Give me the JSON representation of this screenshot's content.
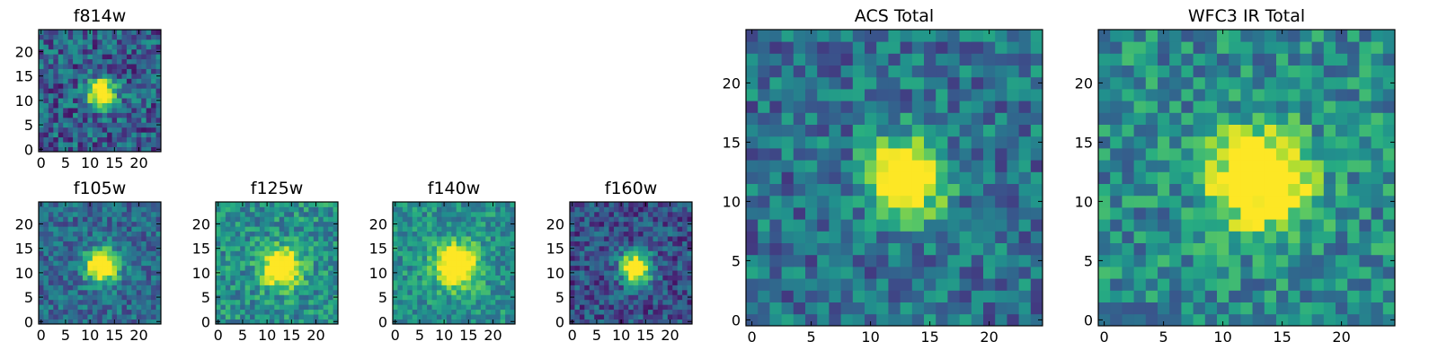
{
  "chart_data": {
    "type": "heatmap",
    "panels": [
      {
        "id": "f814w",
        "title": "f814w",
        "size": 25,
        "seed": 11,
        "peak": [
          12.5,
          11.5
        ],
        "sigma": 2.0,
        "amp": 1.0,
        "noise": 0.25,
        "base": 0.3,
        "x_ticks": [
          0,
          5,
          10,
          15,
          20
        ],
        "y_ticks": [
          0,
          5,
          10,
          15,
          20
        ],
        "x_tick_labels": [
          "0",
          "5",
          "10",
          "15",
          "20"
        ],
        "y_tick_labels": [
          "0",
          "5",
          "10",
          "15",
          "20"
        ]
      },
      {
        "id": "f105w",
        "title": "f105w",
        "size": 25,
        "seed": 23,
        "peak": [
          12.5,
          11.5
        ],
        "sigma": 2.3,
        "amp": 1.0,
        "noise": 0.18,
        "base": 0.35,
        "x_ticks": [
          0,
          5,
          10,
          15,
          20
        ],
        "y_ticks": [
          0,
          5,
          10,
          15,
          20
        ],
        "x_tick_labels": [
          "0",
          "5",
          "10",
          "15",
          "20"
        ],
        "y_tick_labels": [
          "0",
          "5",
          "10",
          "15",
          "20"
        ]
      },
      {
        "id": "f125w",
        "title": "f125w",
        "size": 25,
        "seed": 37,
        "peak": [
          13.0,
          11.0
        ],
        "sigma": 2.6,
        "amp": 0.9,
        "noise": 0.2,
        "base": 0.5,
        "x_ticks": [
          0,
          5,
          10,
          15,
          20
        ],
        "y_ticks": [
          0,
          5,
          10,
          15,
          20
        ],
        "x_tick_labels": [
          "0",
          "5",
          "10",
          "15",
          "20"
        ],
        "y_tick_labels": [
          "0",
          "5",
          "10",
          "15",
          "20"
        ]
      },
      {
        "id": "f140w",
        "title": "f140w",
        "size": 25,
        "seed": 53,
        "peak": [
          12.5,
          11.5
        ],
        "sigma": 3.0,
        "amp": 0.85,
        "noise": 0.18,
        "base": 0.5,
        "x_ticks": [
          0,
          5,
          10,
          15,
          20
        ],
        "y_ticks": [
          0,
          5,
          10,
          15,
          20
        ],
        "x_tick_labels": [
          "0",
          "5",
          "10",
          "15",
          "20"
        ],
        "y_tick_labels": [
          "0",
          "5",
          "10",
          "15",
          "20"
        ]
      },
      {
        "id": "f160w",
        "title": "f160w",
        "size": 25,
        "seed": 71,
        "peak": [
          13.0,
          11.0
        ],
        "sigma": 2.2,
        "amp": 1.0,
        "noise": 0.2,
        "base": 0.25,
        "x_ticks": [
          0,
          5,
          10,
          15,
          20
        ],
        "y_ticks": [
          0,
          5,
          10,
          15,
          20
        ],
        "x_tick_labels": [
          "0",
          "5",
          "10",
          "15",
          "20"
        ],
        "y_tick_labels": [
          "0",
          "5",
          "10",
          "15",
          "20"
        ]
      },
      {
        "id": "acs-total",
        "title": "ACS Total",
        "size": 25,
        "seed": 89,
        "peak": [
          13.0,
          12.0
        ],
        "sigma": 2.2,
        "amp": 1.0,
        "noise": 0.22,
        "base": 0.38,
        "x_ticks": [
          0,
          5,
          10,
          15,
          20
        ],
        "y_ticks": [
          0,
          5,
          10,
          15,
          20
        ],
        "x_tick_labels": [
          "0",
          "5",
          "10",
          "15",
          "20"
        ],
        "y_tick_labels": [
          "0",
          "5",
          "10",
          "15",
          "20"
        ]
      },
      {
        "id": "wfc3-ir-total",
        "title": "WFC3 IR Total",
        "size": 25,
        "seed": 97,
        "peak": [
          13.0,
          12.0
        ],
        "sigma": 2.8,
        "amp": 0.9,
        "noise": 0.22,
        "base": 0.48,
        "x_ticks": [
          0,
          5,
          10,
          15,
          20
        ],
        "y_ticks": [
          0,
          5,
          10,
          15,
          20
        ],
        "x_tick_labels": [
          "0",
          "5",
          "10",
          "15",
          "20"
        ],
        "y_tick_labels": [
          "0",
          "5",
          "10",
          "15",
          "20"
        ]
      }
    ],
    "colormap": [
      "#440154",
      "#472c7a",
      "#3b518b",
      "#2c718e",
      "#21908d",
      "#27ad81",
      "#5cc863",
      "#aadc32",
      "#fde725"
    ]
  }
}
